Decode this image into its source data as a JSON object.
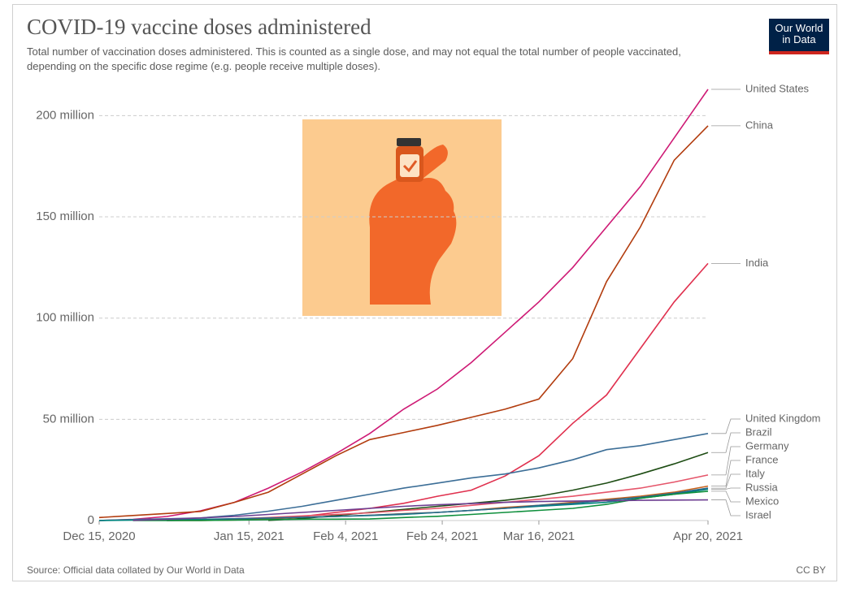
{
  "header": {
    "title": "COVID-19 vaccine doses administered",
    "subtitle": "Total number of vaccination doses administered. This is counted as a single dose, and may not equal the total number of people vaccinated, depending on the specific dose regime (e.g. people receive multiple doses).",
    "logo": [
      "Our World",
      "in Data"
    ]
  },
  "footer": {
    "source": "Source: Official data collated by Our World in Data",
    "license": "CC BY"
  },
  "chart_data": {
    "type": "line",
    "x": [
      "2020-12-15",
      "2020-12-22",
      "2020-12-29",
      "2021-01-05",
      "2021-01-12",
      "2021-01-19",
      "2021-01-26",
      "2021-02-02",
      "2021-02-09",
      "2021-02-16",
      "2021-02-23",
      "2021-03-02",
      "2021-03-09",
      "2021-03-16",
      "2021-03-23",
      "2021-03-30",
      "2021-04-06",
      "2021-04-13",
      "2021-04-20"
    ],
    "xlim": [
      "2020-12-15",
      "2021-04-20"
    ],
    "xticks": [
      {
        "value": "2020-12-15",
        "label": "Dec 15, 2020"
      },
      {
        "value": "2021-01-15",
        "label": "Jan 15, 2021"
      },
      {
        "value": "2021-02-04",
        "label": "Feb 4, 2021"
      },
      {
        "value": "2021-02-24",
        "label": "Feb 24, 2021"
      },
      {
        "value": "2021-03-16",
        "label": "Mar 16, 2021"
      },
      {
        "value": "2021-04-20",
        "label": "Apr 20, 2021"
      }
    ],
    "ylim": [
      0,
      213
    ],
    "yticks": [
      0,
      {
        "value": 50,
        "label": "50 million"
      },
      {
        "value": 100,
        "label": "100 million"
      },
      {
        "value": 150,
        "label": "150 million"
      },
      {
        "value": 200,
        "label": "200 million"
      }
    ],
    "grid": true,
    "series": [
      {
        "name": "United States",
        "color": "#ce1a75",
        "values": [
          0,
          0.6,
          2,
          4.8,
          9,
          16,
          24,
          33,
          43,
          55,
          65,
          78,
          93,
          108,
          125,
          145,
          165,
          189,
          213
        ]
      },
      {
        "name": "China",
        "color": "#b23c0e",
        "values": [
          1.5,
          2.5,
          3.5,
          4.5,
          9,
          14,
          23,
          32,
          40,
          43.5,
          47,
          51,
          55,
          60,
          80,
          118,
          145,
          178,
          195
        ]
      },
      {
        "name": "India",
        "color": "#e0304e",
        "values": [
          null,
          null,
          null,
          null,
          null,
          0.5,
          2,
          4,
          6,
          8.5,
          12,
          15,
          22,
          32,
          48,
          62,
          85,
          108,
          127
        ]
      },
      {
        "name": "United Kingdom",
        "color": "#3c6e97",
        "values": [
          0,
          0.5,
          0.9,
          1.3,
          2.6,
          4.6,
          7,
          10,
          13,
          16,
          18.5,
          21,
          23,
          26,
          30,
          35,
          37,
          40,
          43
        ]
      },
      {
        "name": "Brazil",
        "color": "#1e4d14",
        "values": [
          null,
          null,
          null,
          null,
          null,
          0.1,
          1,
          2.5,
          4,
          5.5,
          7,
          8.5,
          10,
          12,
          15,
          18.5,
          23,
          28,
          33.6
        ]
      },
      {
        "name": "Germany",
        "color": "#e5556a",
        "values": [
          null,
          null,
          0.04,
          0.4,
          0.9,
          1.5,
          2.3,
          3,
          3.8,
          5,
          6,
          7.5,
          9,
          10.5,
          12,
          14,
          16,
          19,
          22.5
        ]
      },
      {
        "name": "France",
        "color": "#c8621c",
        "values": [
          null,
          null,
          0,
          0.01,
          0.3,
          0.9,
          1.6,
          2,
          2.6,
          3.4,
          4,
          5,
          6.5,
          7.5,
          9,
          10.5,
          12,
          14,
          17
        ]
      },
      {
        "name": "Russia",
        "color": "#00847e",
        "values": [
          0,
          0.2,
          0.4,
          0.6,
          0.9,
          1.2,
          1.6,
          2,
          2.5,
          3,
          4,
          5,
          6,
          7,
          8,
          9,
          11,
          13,
          15.5
        ]
      },
      {
        "name": "Italy",
        "color": "#2a6a8c",
        "values": [
          null,
          null,
          0.01,
          0.2,
          0.9,
          1.2,
          1.6,
          2,
          2.6,
          3.3,
          4,
          5,
          6,
          7.5,
          8.5,
          10,
          11.5,
          13.5,
          16
        ]
      },
      {
        "name": "Mexico",
        "color": "#0e8f3c",
        "values": [
          null,
          0.003,
          0.04,
          0.05,
          0.2,
          0.45,
          0.65,
          0.7,
          0.75,
          1.5,
          2.1,
          3,
          4,
          5,
          6,
          8,
          11,
          13,
          14.5
        ]
      },
      {
        "name": "Israel",
        "color": "#6d3e91",
        "values": [
          null,
          0.1,
          0.6,
          1.3,
          2,
          3,
          4,
          5,
          6,
          7,
          7.8,
          8.4,
          9,
          9.4,
          9.6,
          9.8,
          10,
          10.1,
          10.2
        ]
      }
    ]
  }
}
